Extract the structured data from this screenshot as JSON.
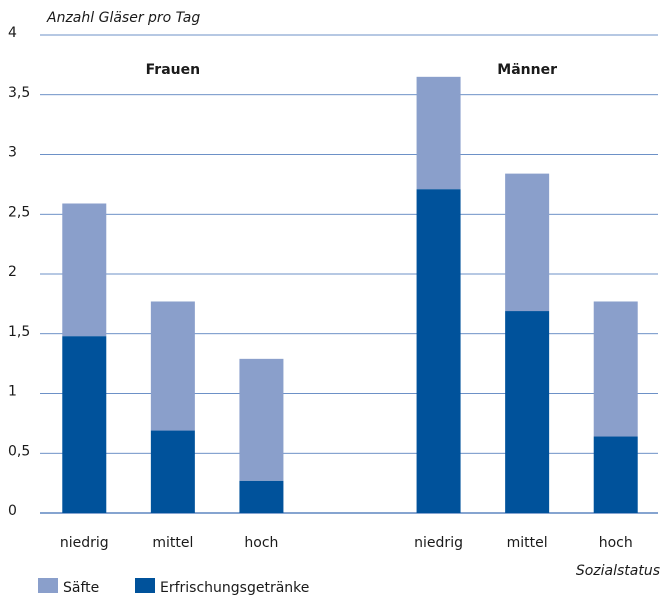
{
  "chart_data": {
    "type": "stacked-bar",
    "title": "Anzahl Gläser pro Tag",
    "x_label": "Sozialstatus",
    "group_labels": [
      "Frauen",
      "Männer"
    ],
    "categories": [
      "niedrig",
      "mittel",
      "hoch",
      null,
      "niedrig",
      "mittel",
      "hoch"
    ],
    "series": [
      {
        "name": "Säfte",
        "color": "#8a9fcb",
        "values": [
          1.11,
          1.08,
          1.02,
          null,
          0.94,
          1.15,
          1.13
        ]
      },
      {
        "name": "Erfrischungsgetränke",
        "color": "#00529b",
        "values": [
          1.48,
          0.69,
          0.27,
          null,
          2.71,
          1.69,
          0.64
        ]
      }
    ],
    "ylim": [
      0,
      4
    ],
    "yticks": [
      0,
      {
        "value": 0.5,
        "label": "0,5"
      },
      1,
      {
        "value": 1.5,
        "label": "1,5"
      },
      2,
      {
        "value": 2.5,
        "label": "2,5"
      },
      3,
      {
        "value": 3.5,
        "label": "3,5"
      },
      4
    ],
    "grid": true
  }
}
